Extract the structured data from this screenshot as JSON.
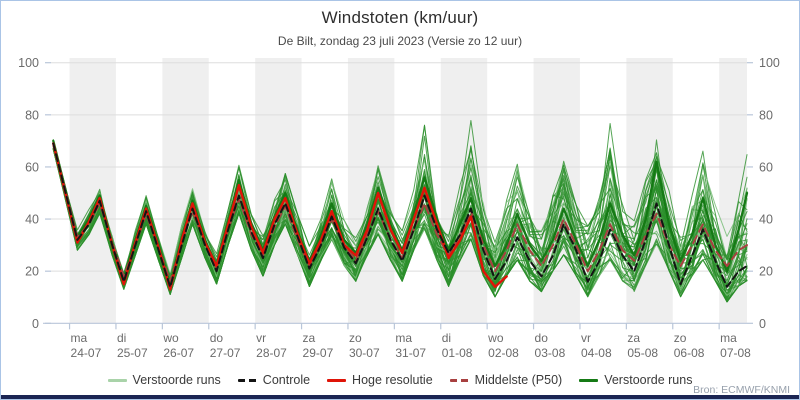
{
  "header": {
    "title": "Windstoten (km/uur)",
    "subtitle": "De Bilt, zondag 23 juli 2023 (Versie zo 12 uur)"
  },
  "footer": {
    "source": "Bron: ECMWF/KNMI"
  },
  "legend": {
    "items": [
      {
        "label": "Verstoorde runs",
        "color": "#a9d3a9",
        "style": "solid"
      },
      {
        "label": "Controle",
        "color": "#141414",
        "style": "dashed"
      },
      {
        "label": "Hoge resolutie",
        "color": "#df1408",
        "style": "solid"
      },
      {
        "label": "Middelste (P50)",
        "color": "#a84040",
        "style": "dashed"
      },
      {
        "label": "Verstoorde runs",
        "color": "#157a15",
        "style": "solid"
      }
    ]
  },
  "colors": {
    "band": "#efefef",
    "grid": "#dedede",
    "axis": "#b9c6d9",
    "tick_text": "#6b6b6b",
    "frame": "#aac4e6",
    "bottom_bar": "#1b2553",
    "ensemble_thin": "rgba(42,142,42,0.8)",
    "ensemble_light": "rgba(122,190,122,0.85)"
  },
  "chart_data": {
    "type": "line",
    "title": "Windstoten (km/uur)",
    "subtitle": "De Bilt, zondag 23 juli 2023 (Versie zo 12 uur)",
    "xlabel": "",
    "ylabel": "",
    "ylim": [
      0,
      100
    ],
    "y_ticks": [
      0,
      20,
      40,
      60,
      80,
      100
    ],
    "grid": true,
    "legend_position": "bottom",
    "x_ticks": [
      {
        "weekday": "ma",
        "date": "24-07"
      },
      {
        "weekday": "di",
        "date": "25-07"
      },
      {
        "weekday": "wo",
        "date": "26-07"
      },
      {
        "weekday": "do",
        "date": "27-07"
      },
      {
        "weekday": "vr",
        "date": "28-07"
      },
      {
        "weekday": "za",
        "date": "29-07"
      },
      {
        "weekday": "zo",
        "date": "30-07"
      },
      {
        "weekday": "ma",
        "date": "31-07"
      },
      {
        "weekday": "di",
        "date": "01-08"
      },
      {
        "weekday": "wo",
        "date": "02-08"
      },
      {
        "weekday": "do",
        "date": "03-08"
      },
      {
        "weekday": "vr",
        "date": "04-08"
      },
      {
        "weekday": "za",
        "date": "05-08"
      },
      {
        "weekday": "zo",
        "date": "06-08"
      },
      {
        "weekday": "ma",
        "date": "07-08"
      }
    ],
    "days_axis": [
      -0.35,
      0.17,
      0.42,
      0.65,
      0.92,
      1.17,
      1.42,
      1.65,
      1.92,
      2.17,
      2.42,
      2.65,
      2.92,
      3.17,
      3.42,
      3.65,
      3.92,
      4.17,
      4.42,
      4.65,
      4.92,
      5.17,
      5.42,
      5.65,
      5.92,
      6.17,
      6.42,
      6.65,
      6.92,
      7.17,
      7.42,
      7.65,
      7.92,
      8.17,
      8.42,
      8.65,
      8.92,
      9.17,
      9.42,
      9.65,
      9.92,
      10.17,
      10.42,
      10.65,
      10.92,
      11.17,
      11.42,
      11.65,
      11.92,
      12.17,
      12.42,
      12.65,
      12.92,
      13.17,
      13.42,
      13.65,
      13.92,
      14.17,
      14.42,
      14.6
    ],
    "series": [
      {
        "name": "Middelste (P50)",
        "color": "#a84040",
        "dash": [
          8,
          5
        ],
        "width": 2,
        "values": [
          69,
          33,
          38,
          46,
          31,
          18,
          30,
          42,
          29,
          16,
          31,
          43,
          31,
          21,
          36,
          48,
          34,
          26,
          37,
          45,
          32,
          22,
          31,
          40,
          30,
          24,
          34,
          43,
          32,
          25,
          36,
          46,
          34,
          26,
          34,
          43,
          30,
          20,
          28,
          38,
          28,
          22,
          30,
          40,
          30,
          20,
          28,
          38,
          28,
          24,
          34,
          42,
          30,
          22,
          30,
          38,
          28,
          22,
          28,
          30
        ]
      },
      {
        "name": "Verstoorde runs (dark)",
        "color": "#157a15",
        "dash": null,
        "width": 2.3,
        "values": [
          70,
          33,
          40,
          49,
          31,
          17,
          32,
          45,
          30,
          15,
          33,
          47,
          32,
          22,
          39,
          55,
          38,
          28,
          41,
          50,
          35,
          24,
          34,
          46,
          32,
          27,
          38,
          52,
          38,
          28,
          42,
          56,
          40,
          28,
          38,
          48,
          32,
          22,
          30,
          42,
          30,
          24,
          32,
          44,
          32,
          22,
          32,
          46,
          34,
          26,
          40,
          62,
          38,
          24,
          34,
          48,
          30,
          20,
          36,
          50
        ]
      },
      {
        "name": "Hoge resolutie",
        "color": "#df1408",
        "dash": null,
        "width": 2.5,
        "values": [
          69,
          31,
          39,
          48,
          30,
          15,
          31,
          44,
          29,
          13,
          32,
          46,
          31,
          22,
          38,
          53,
          37,
          27,
          40,
          48,
          34,
          23,
          32,
          43,
          30,
          26,
          36,
          50,
          36,
          27,
          40,
          52,
          38,
          25,
          32,
          41,
          20,
          14,
          18,
          null,
          null,
          null,
          null,
          null,
          null,
          null,
          null,
          null,
          null,
          null,
          null,
          null,
          null,
          null,
          null,
          null,
          null,
          null,
          null,
          null
        ]
      },
      {
        "name": "Controle",
        "color": "#141414",
        "dash": [
          7,
          4
        ],
        "width": 2,
        "values": [
          69,
          32,
          38,
          47,
          30,
          16,
          30,
          43,
          28,
          14,
          30,
          44,
          30,
          20,
          36,
          49,
          35,
          25,
          38,
          46,
          33,
          21,
          30,
          41,
          29,
          23,
          33,
          44,
          32,
          24,
          36,
          49,
          36,
          27,
          34,
          44,
          28,
          17,
          24,
          33,
          24,
          18,
          26,
          38,
          28,
          16,
          24,
          36,
          26,
          20,
          32,
          46,
          30,
          15,
          26,
          36,
          24,
          14,
          20,
          22
        ]
      }
    ],
    "ensemble": {
      "name": "Verstoorde runs",
      "count": 46,
      "min": [
        67,
        28,
        34,
        42,
        26,
        13,
        26,
        38,
        24,
        11,
        25,
        38,
        25,
        15,
        30,
        42,
        28,
        18,
        30,
        38,
        26,
        14,
        24,
        32,
        22,
        16,
        26,
        34,
        24,
        16,
        28,
        36,
        24,
        14,
        24,
        32,
        18,
        10,
        18,
        24,
        16,
        12,
        20,
        26,
        18,
        10,
        18,
        24,
        16,
        12,
        22,
        30,
        20,
        10,
        18,
        24,
        16,
        8,
        14,
        16
      ],
      "max": [
        70,
        36,
        44,
        52,
        34,
        20,
        36,
        50,
        33,
        19,
        38,
        52,
        36,
        27,
        44,
        62,
        42,
        34,
        48,
        58,
        42,
        30,
        42,
        56,
        40,
        34,
        48,
        64,
        44,
        36,
        52,
        77,
        48,
        38,
        54,
        79,
        50,
        34,
        48,
        62,
        44,
        36,
        50,
        66,
        46,
        38,
        52,
        78,
        48,
        40,
        56,
        82,
        52,
        36,
        50,
        70,
        46,
        34,
        50,
        66
      ]
    }
  }
}
